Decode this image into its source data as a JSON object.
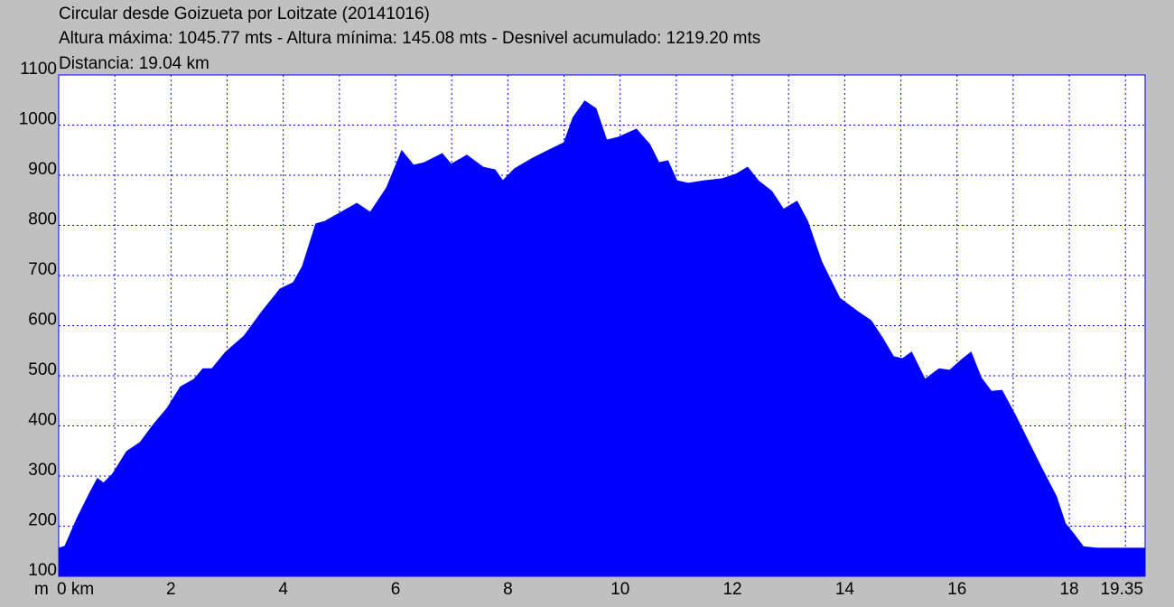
{
  "chart_data": {
    "type": "area",
    "title": "Circular desde Goizueta por Loitzate (20141016)",
    "subtitles": [
      "Altura máxima: 1045.77 mts - Altura mínima: 145.08 mts - Desnivel acumulado: 1219.20 mts",
      "Distancia: 19.04 km"
    ],
    "y_unit": "m",
    "color": "#0000ff",
    "grid": true,
    "x": [
      0,
      0.11,
      0.32,
      0.56,
      0.69,
      0.8,
      0.96,
      1.21,
      1.45,
      1.69,
      1.93,
      2.17,
      2.41,
      2.57,
      2.73,
      2.97,
      3.3,
      3.62,
      3.94,
      4.18,
      4.34,
      4.58,
      4.74,
      4.98,
      5.31,
      5.55,
      5.84,
      6.11,
      6.32,
      6.51,
      6.83,
      6.99,
      7.27,
      7.56,
      7.77,
      7.91,
      8.12,
      8.44,
      8.76,
      9.0,
      9.16,
      9.37,
      9.57,
      9.76,
      9.97,
      10.29,
      10.53,
      10.69,
      10.85,
      11.01,
      11.21,
      11.5,
      11.82,
      12.06,
      12.27,
      12.46,
      12.7,
      12.91,
      13.15,
      13.34,
      13.59,
      13.91,
      14.23,
      14.47,
      14.68,
      14.87,
      15.03,
      15.19,
      15.43,
      15.68,
      15.87,
      16.08,
      16.25,
      16.43,
      16.61,
      16.8,
      17.04,
      17.28,
      17.52,
      17.77,
      17.93,
      18.09,
      18.25,
      18.49,
      18.89,
      19.34
    ],
    "values": [
      156,
      160,
      214,
      268,
      295,
      286,
      304,
      349,
      367,
      403,
      435,
      478,
      493,
      514,
      514,
      547,
      579,
      628,
      673,
      686,
      718,
      803,
      808,
      823,
      844,
      826,
      875,
      949,
      920,
      925,
      943,
      922,
      940,
      916,
      911,
      889,
      913,
      934,
      952,
      965,
      1015,
      1048,
      1033,
      970,
      976,
      992,
      961,
      925,
      929,
      889,
      884,
      889,
      893,
      902,
      916,
      889,
      868,
      832,
      848,
      808,
      727,
      655,
      628,
      610,
      574,
      538,
      534,
      547,
      493,
      514,
      511,
      532,
      547,
      496,
      469,
      471,
      421,
      367,
      313,
      259,
      205,
      183,
      159,
      156,
      156,
      156
    ],
    "xlim": [
      0,
      19.35
    ],
    "ylim": [
      100,
      1100
    ],
    "xticks": [
      {
        "value": 0,
        "label": "0 km"
      },
      2,
      4,
      6,
      8,
      10,
      12,
      14,
      16,
      18,
      19.35
    ],
    "xminorticks": [
      1,
      3,
      5,
      7,
      9,
      11,
      13,
      15,
      17,
      19
    ],
    "yticks": [
      100,
      200,
      300,
      400,
      500,
      600,
      700,
      800,
      900,
      1000,
      1100
    ]
  }
}
